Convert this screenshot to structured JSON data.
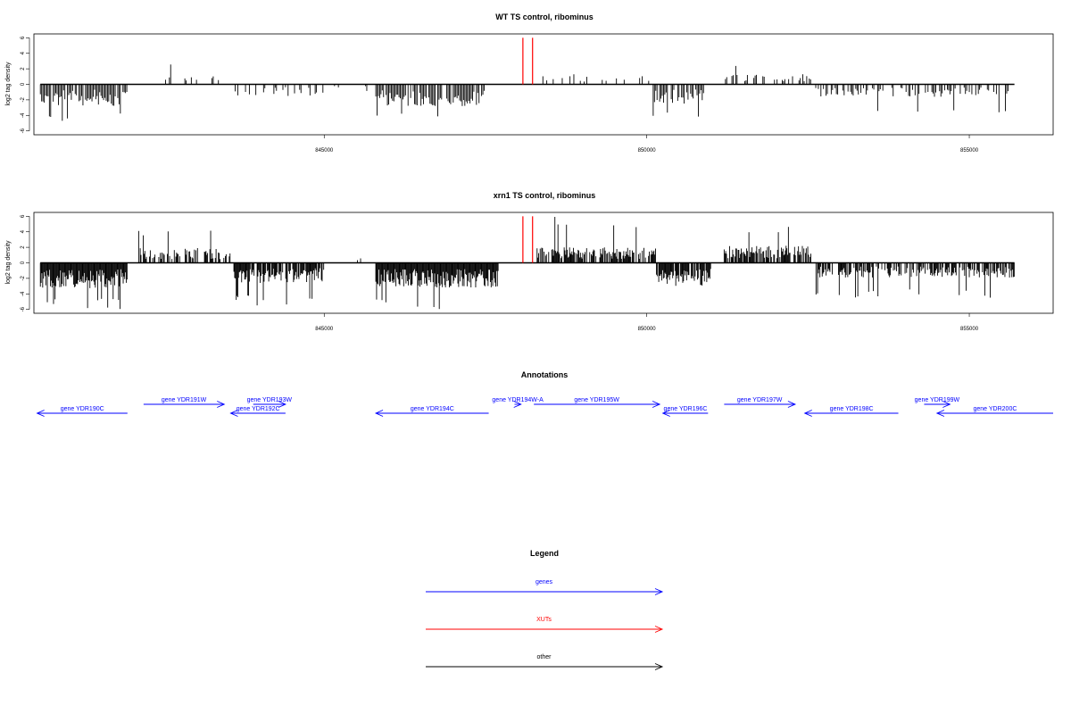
{
  "chart_data": [
    {
      "type": "bar",
      "title": "WT TS control, ribominus",
      "ylabel": "log2 tag density",
      "ylim": [
        -6.5,
        6.5
      ],
      "yticks": [
        -6,
        -4,
        -2,
        0,
        2,
        4,
        6
      ],
      "xlim": [
        840500,
        856300
      ],
      "xticks": [
        845000,
        850000,
        855000
      ],
      "xtick_labels": [
        "845000",
        "850000",
        "855000"
      ],
      "baseline": {
        "from": 840600,
        "to": 855700
      },
      "xut_marks": [
        {
          "x": 848080,
          "y": 6
        },
        {
          "x": 848230,
          "y": 6
        }
      ],
      "profile": {
        "region_start": 840600,
        "region_end": 855700,
        "seed": 11,
        "step": 20,
        "segments": [
          {
            "from": 840600,
            "to": 841950,
            "sign": -1,
            "amp": 2.8,
            "peak": 5.0,
            "density": 0.9
          },
          {
            "from": 842500,
            "to": 843500,
            "sign": 1,
            "amp": 1.2,
            "peak": 2.8,
            "density": 0.25
          },
          {
            "from": 843600,
            "to": 845000,
            "sign": -1,
            "amp": 1.5,
            "peak": 3.3,
            "density": 0.35
          },
          {
            "from": 845000,
            "to": 845800,
            "sign": -1,
            "amp": 0.6,
            "peak": 1.0,
            "density": 0.04
          },
          {
            "from": 845800,
            "to": 847500,
            "sign": -1,
            "amp": 2.8,
            "peak": 5.0,
            "density": 0.85
          },
          {
            "from": 848350,
            "to": 850050,
            "sign": 1,
            "amp": 1.3,
            "peak": 4.8,
            "density": 0.3
          },
          {
            "from": 850100,
            "to": 850900,
            "sign": -1,
            "amp": 2.5,
            "peak": 4.2,
            "density": 0.75
          },
          {
            "from": 851200,
            "to": 852600,
            "sign": 1,
            "amp": 1.3,
            "peak": 3.1,
            "density": 0.4
          },
          {
            "from": 852600,
            "to": 855700,
            "sign": -1,
            "amp": 1.6,
            "peak": 3.6,
            "density": 0.45
          }
        ]
      }
    },
    {
      "type": "bar",
      "title": "xrn1 TS control, ribominus",
      "ylabel": "log2 tag density",
      "ylim": [
        -6.5,
        6.5
      ],
      "yticks": [
        -6,
        -4,
        -2,
        0,
        2,
        4,
        6
      ],
      "xlim": [
        840500,
        856300
      ],
      "xticks": [
        845000,
        850000,
        855000
      ],
      "xtick_labels": [
        "845000",
        "850000",
        "855000"
      ],
      "baseline": {
        "from": 840600,
        "to": 855700
      },
      "xut_marks": [
        {
          "x": 848080,
          "y": 6
        },
        {
          "x": 848230,
          "y": 6
        }
      ],
      "profile": {
        "region_start": 840600,
        "region_end": 855700,
        "seed": 29,
        "step": 12,
        "segments": [
          {
            "from": 840600,
            "to": 841950,
            "sign": -1,
            "amp": 3.3,
            "peak": 6.0,
            "density": 1.0
          },
          {
            "from": 842100,
            "to": 843550,
            "sign": 1,
            "amp": 1.9,
            "peak": 4.6,
            "density": 0.6
          },
          {
            "from": 843600,
            "to": 845000,
            "sign": -1,
            "amp": 2.6,
            "peak": 5.6,
            "density": 0.8
          },
          {
            "from": 845000,
            "to": 845800,
            "sign": 1,
            "amp": 1.0,
            "peak": 2.6,
            "density": 0.06
          },
          {
            "from": 845800,
            "to": 847700,
            "sign": -1,
            "amp": 3.2,
            "peak": 6.3,
            "density": 1.0
          },
          {
            "from": 848300,
            "to": 850150,
            "sign": 1,
            "amp": 2.0,
            "peak": 6.0,
            "density": 0.7
          },
          {
            "from": 850150,
            "to": 851000,
            "sign": -1,
            "amp": 3.0,
            "peak": 5.9,
            "density": 0.9
          },
          {
            "from": 851200,
            "to": 852550,
            "sign": 1,
            "amp": 2.2,
            "peak": 5.2,
            "density": 0.8
          },
          {
            "from": 852600,
            "to": 855700,
            "sign": -1,
            "amp": 1.9,
            "peak": 4.5,
            "density": 0.65
          }
        ]
      }
    }
  ],
  "annotations": {
    "title": "Annotations",
    "genes": [
      {
        "name": "gene YDR190C",
        "start": 841950,
        "end": 840550,
        "row": "lower"
      },
      {
        "name": "gene YDR191W",
        "start": 842200,
        "end": 843450,
        "row": "upper"
      },
      {
        "name": "gene YDR192C",
        "start": 844400,
        "end": 843550,
        "row": "lower"
      },
      {
        "name": "gene YDR193W",
        "start": 843900,
        "end": 844400,
        "row": "upper"
      },
      {
        "name": "gene YDR194C",
        "start": 847550,
        "end": 845800,
        "row": "lower"
      },
      {
        "name": "gene YDR194W-A",
        "start": 847950,
        "end": 848050,
        "row": "upper"
      },
      {
        "name": "gene YDR195W",
        "start": 848250,
        "end": 850200,
        "row": "upper"
      },
      {
        "name": "gene YDR196C",
        "start": 850950,
        "end": 850250,
        "row": "lower"
      },
      {
        "name": "gene YDR197W",
        "start": 851200,
        "end": 852300,
        "row": "upper"
      },
      {
        "name": "gene YDR198C",
        "start": 853900,
        "end": 852450,
        "row": "lower"
      },
      {
        "name": "gene YDR199W",
        "start": 854300,
        "end": 854700,
        "row": "upper"
      },
      {
        "name": "gene YDR200C",
        "start": 856300,
        "end": 854500,
        "row": "lower"
      }
    ]
  },
  "legend": {
    "title": "Legend",
    "items": [
      {
        "label": "genes",
        "color": "#0000ff"
      },
      {
        "label": "XUTs",
        "color": "#ff0000"
      },
      {
        "label": "other",
        "color": "#000000"
      }
    ]
  },
  "colors": {
    "bars": "#000000",
    "xut": "#ff0000",
    "genes": "#0000ff",
    "other": "#000000"
  }
}
